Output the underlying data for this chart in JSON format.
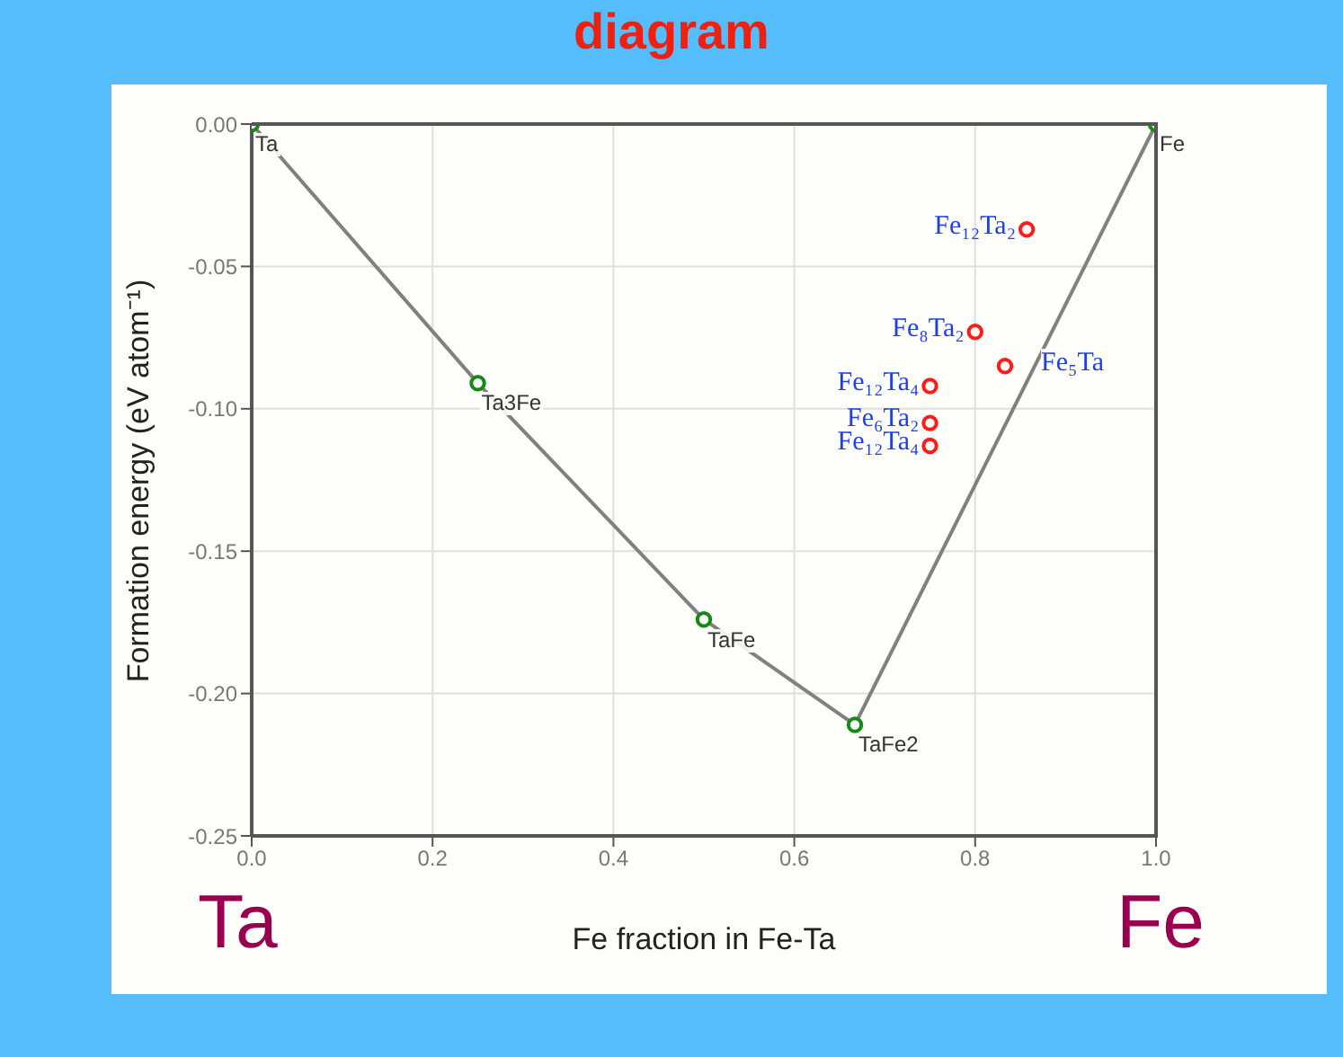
{
  "chart_data": {
    "type": "scatter",
    "title": "diagram",
    "xlabel": "Fe fraction in Fe-Ta",
    "ylabel": "Formation energy (eV atom⁻¹)",
    "xlim": [
      0,
      1
    ],
    "xticks": [
      {
        "value": 0,
        "label": "0.0"
      },
      {
        "value": 0.2,
        "label": "0.2"
      },
      {
        "value": 0.4,
        "label": "0.4"
      },
      {
        "value": 0.6,
        "label": "0.6"
      },
      {
        "value": 0.8,
        "label": "0.8"
      },
      {
        "value": 1,
        "label": "1.0"
      }
    ],
    "ylim": [
      -0.25,
      0
    ],
    "yticks": [
      {
        "value": -0.25,
        "label": "-0.25"
      },
      {
        "value": -0.2,
        "label": "-0.20"
      },
      {
        "value": -0.15,
        "label": "-0.15"
      },
      {
        "value": -0.1,
        "label": "-0.10"
      },
      {
        "value": -0.05,
        "label": "-0.05"
      },
      {
        "value": 0,
        "label": "0.00"
      }
    ],
    "grid": true,
    "series": [
      {
        "type": "line",
        "color": "#808080",
        "marker": "none",
        "x": [
          0,
          0.25,
          0.5,
          0.667,
          1
        ],
        "values": [
          0,
          -0.091,
          -0.174,
          -0.211,
          0
        ]
      },
      {
        "color": "#138a13",
        "marker": "circle",
        "x": [
          0,
          0.25,
          0.5,
          0.667,
          1
        ],
        "values": [
          0,
          -0.091,
          -0.174,
          -0.211,
          0
        ]
      },
      {
        "color": "#ff1a1a",
        "marker": "circle",
        "x": [
          0.857,
          0.8,
          0.833,
          0.75,
          0.75,
          0.75
        ],
        "values": [
          -0.037,
          -0.073,
          -0.085,
          -0.092,
          -0.105,
          -0.113
        ]
      }
    ],
    "annotations": [
      {
        "text": "Ta",
        "x": 0,
        "y": 0
      },
      {
        "text": "Ta3Fe",
        "x": 0.25,
        "y": -0.091
      },
      {
        "text": "TaFe",
        "x": 0.5,
        "y": -0.174
      },
      {
        "text": "TaFe2",
        "x": 0.667,
        "y": -0.211
      },
      {
        "text": "Fe",
        "x": 1,
        "y": 0
      },
      {
        "text": "Fe₁₂Ta₂",
        "x": 0.857,
        "y": -0.037
      },
      {
        "text": "Fe₈Ta₂",
        "x": 0.8,
        "y": -0.073
      },
      {
        "text": "Fe₅Ta",
        "x": 0.833,
        "y": -0.085
      },
      {
        "text": "Fe₁₂Ta₄",
        "x": 0.75,
        "y": -0.092
      },
      {
        "text": "Fe₆Ta₂",
        "x": 0.75,
        "y": -0.105
      },
      {
        "text": "Fe₁₂Ta₄",
        "x": 0.75,
        "y": -0.113
      },
      "Ta",
      "Fe"
    ]
  }
}
